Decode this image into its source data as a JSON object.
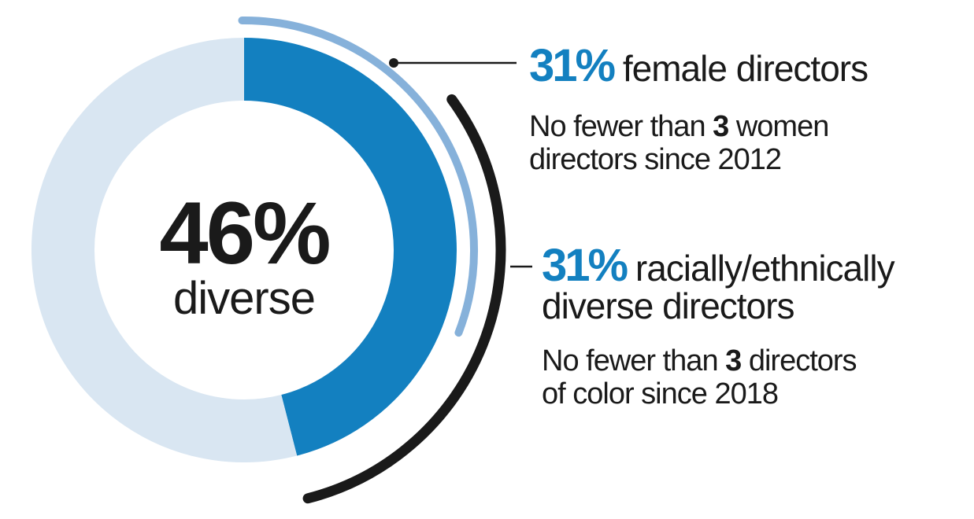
{
  "chart_data": {
    "type": "pie",
    "style": "donut",
    "center_value": "46%",
    "center_label": "diverse",
    "slices": [
      {
        "label": "diverse",
        "value": 46,
        "color": "#1380c0"
      },
      {
        "label": "",
        "value": 54,
        "color": "#d9e6f2"
      }
    ],
    "arcs": [
      {
        "value": 31,
        "color": "#86b1da",
        "percent_label": "31%",
        "label": "female directors",
        "note_pre": "No fewer than ",
        "note_bold": "3",
        "note_post": " women",
        "note_line2": "directors since 2012"
      },
      {
        "value": 31,
        "color": "#1a1a1a",
        "percent_label": "31%",
        "label_line1": "racially/ethnically",
        "label_line2": "diverse directors",
        "note_pre": "No fewer than ",
        "note_bold": "3",
        "note_post": " directors",
        "note_line2": "of color since 2018"
      }
    ]
  }
}
